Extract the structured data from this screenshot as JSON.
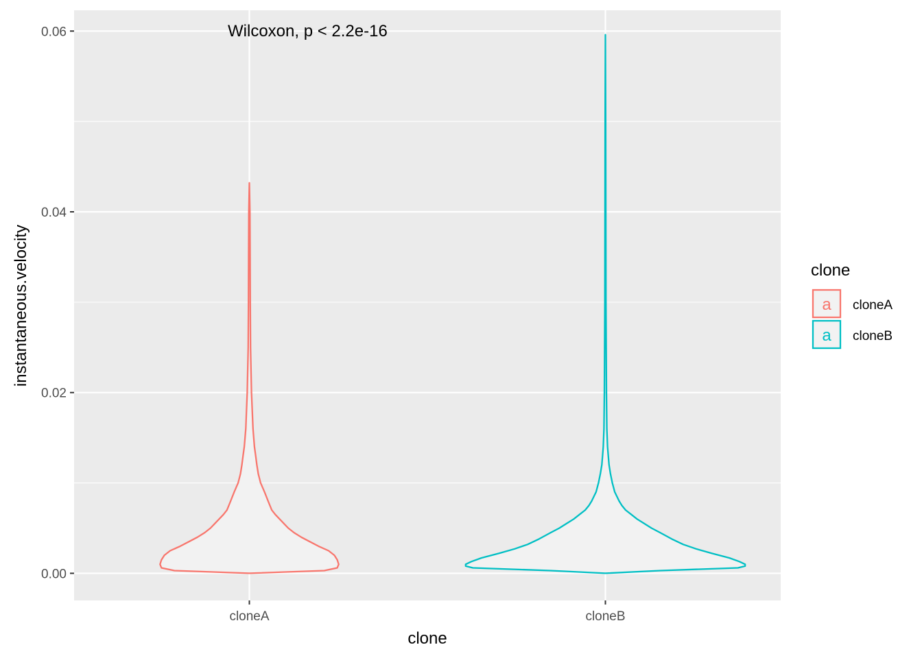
{
  "chart_data": {
    "type": "violin",
    "annotation": "Wilcoxon, p < 2.2e-16",
    "xlabel": "clone",
    "ylabel": "instantaneous.velocity",
    "ylim": [
      -0.003,
      0.0623
    ],
    "yticks": [
      0.0,
      0.02,
      0.04,
      0.06
    ],
    "ytick_labels": [
      "0.00",
      "0.02",
      "0.04",
      "0.06"
    ],
    "categories": [
      "cloneA",
      "cloneB"
    ],
    "grid": true,
    "legend": {
      "title": "clone",
      "position": "right",
      "glyph": "a",
      "entries": [
        "cloneA",
        "cloneB"
      ]
    },
    "series": [
      {
        "name": "cloneA",
        "color": "#F8766D",
        "max": 0.0432,
        "density_profile": [
          [
            0.0,
            0.0
          ],
          [
            0.0003,
            0.52
          ],
          [
            0.0006,
            0.61
          ],
          [
            0.001,
            0.62
          ],
          [
            0.0015,
            0.61
          ],
          [
            0.002,
            0.59
          ],
          [
            0.0025,
            0.55
          ],
          [
            0.003,
            0.48
          ],
          [
            0.0035,
            0.42
          ],
          [
            0.004,
            0.36
          ],
          [
            0.0045,
            0.31
          ],
          [
            0.005,
            0.27
          ],
          [
            0.0055,
            0.24
          ],
          [
            0.006,
            0.21
          ],
          [
            0.0065,
            0.18
          ],
          [
            0.007,
            0.155
          ],
          [
            0.008,
            0.13
          ],
          [
            0.009,
            0.105
          ],
          [
            0.01,
            0.078
          ],
          [
            0.011,
            0.062
          ],
          [
            0.012,
            0.052
          ],
          [
            0.013,
            0.044
          ],
          [
            0.014,
            0.035
          ],
          [
            0.016,
            0.025
          ],
          [
            0.018,
            0.02
          ],
          [
            0.02,
            0.015
          ],
          [
            0.025,
            0.008
          ],
          [
            0.03,
            0.006
          ],
          [
            0.035,
            0.005
          ],
          [
            0.04,
            0.004
          ],
          [
            0.0432,
            0.0
          ]
        ]
      },
      {
        "name": "cloneB",
        "color": "#00BFC4",
        "max": 0.0596,
        "density_profile": [
          [
            0.0,
            0.0
          ],
          [
            0.0003,
            0.38
          ],
          [
            0.0006,
            0.92
          ],
          [
            0.0008,
            0.97
          ],
          [
            0.001,
            0.97
          ],
          [
            0.0013,
            0.93
          ],
          [
            0.0017,
            0.86
          ],
          [
            0.0022,
            0.74
          ],
          [
            0.0027,
            0.63
          ],
          [
            0.0032,
            0.54
          ],
          [
            0.0038,
            0.46
          ],
          [
            0.0045,
            0.38
          ],
          [
            0.005,
            0.32
          ],
          [
            0.0055,
            0.27
          ],
          [
            0.006,
            0.22
          ],
          [
            0.0065,
            0.18
          ],
          [
            0.007,
            0.14
          ],
          [
            0.0075,
            0.115
          ],
          [
            0.008,
            0.095
          ],
          [
            0.009,
            0.065
          ],
          [
            0.01,
            0.048
          ],
          [
            0.011,
            0.035
          ],
          [
            0.012,
            0.025
          ],
          [
            0.014,
            0.015
          ],
          [
            0.016,
            0.01
          ],
          [
            0.02,
            0.007
          ],
          [
            0.03,
            0.004
          ],
          [
            0.04,
            0.003
          ],
          [
            0.05,
            0.002
          ],
          [
            0.0596,
            0.0
          ]
        ]
      }
    ]
  }
}
